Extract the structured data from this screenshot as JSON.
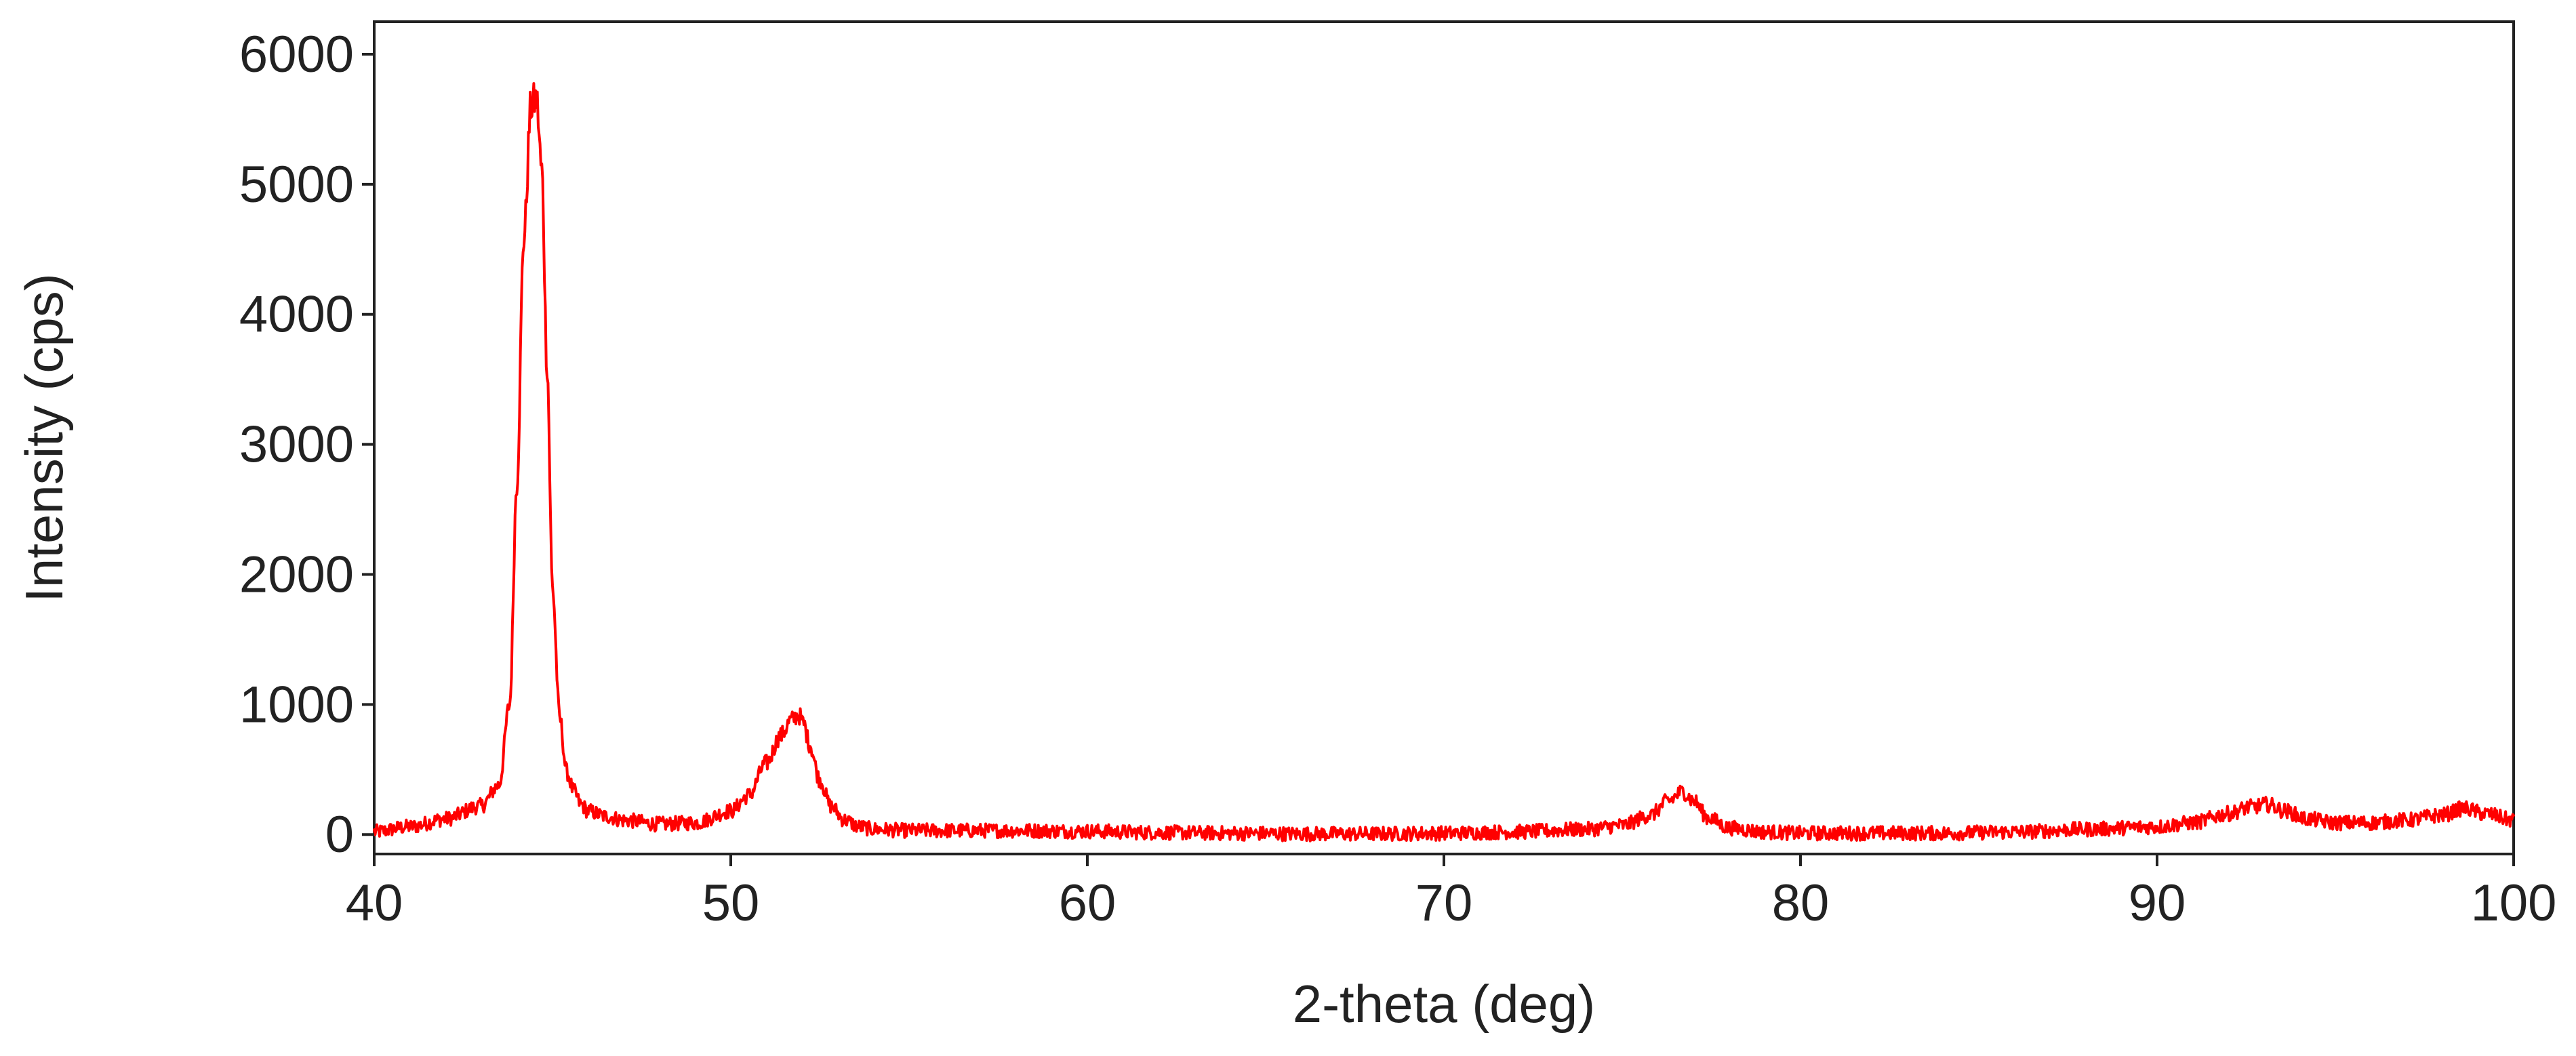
{
  "chart_data": {
    "type": "line",
    "title": "",
    "xlabel": "2-theta (deg)",
    "ylabel": "Intensity (cps)",
    "xlim": [
      40,
      100
    ],
    "ylim": [
      -150,
      6250
    ],
    "xticks": [
      40,
      50,
      60,
      70,
      80,
      90,
      100
    ],
    "yticks": [
      0,
      1000,
      2000,
      3000,
      4000,
      5000,
      6000
    ],
    "grid": false,
    "legend": "none",
    "series": [
      {
        "color": "#ff0000",
        "noise_amplitude": 55,
        "x": [
          40,
          41,
          42,
          43,
          43.5,
          43.8,
          44.0,
          44.2,
          44.4,
          44.55,
          44.7,
          44.85,
          45.0,
          45.2,
          45.4,
          45.6,
          45.8,
          46.0,
          46.5,
          47,
          48,
          49,
          50,
          50.5,
          51,
          51.4,
          51.7,
          51.9,
          52.05,
          52.2,
          52.5,
          52.8,
          53.2,
          53.6,
          54,
          55,
          56,
          58,
          60,
          62,
          64,
          66,
          68,
          70,
          72,
          74,
          75,
          75.8,
          76.3,
          76.7,
          77.0,
          77.4,
          78,
          79,
          80,
          82,
          84,
          86,
          88,
          90,
          91,
          92,
          92.6,
          93.1,
          93.6,
          94.2,
          95,
          96,
          97,
          98,
          98.6,
          99.2,
          100
        ],
        "y": [
          20,
          60,
          120,
          220,
          380,
          1000,
          2700,
          4600,
          5600,
          5650,
          5100,
          3600,
          1900,
          900,
          480,
          330,
          230,
          180,
          140,
          110,
          80,
          90,
          180,
          300,
          550,
          760,
          880,
          920,
          850,
          700,
          420,
          220,
          110,
          60,
          40,
          30,
          30,
          30,
          25,
          15,
          10,
          5,
          5,
          10,
          20,
          40,
          70,
          150,
          260,
          330,
          260,
          130,
          50,
          20,
          10,
          10,
          10,
          20,
          40,
          60,
          90,
          160,
          210,
          230,
          180,
          120,
          90,
          90,
          110,
          150,
          200,
          160,
          110
        ]
      }
    ]
  }
}
